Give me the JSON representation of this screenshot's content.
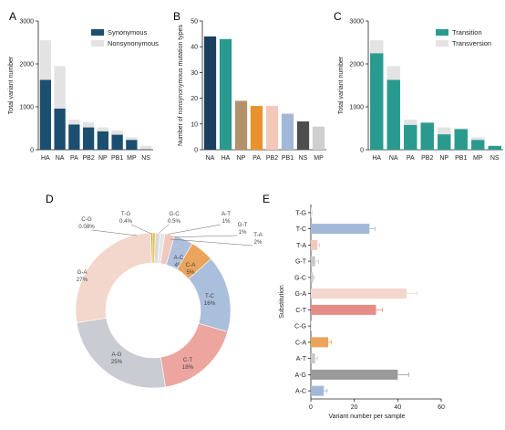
{
  "chart_data": [
    {
      "panel": "A",
      "type": "bar",
      "stacked": true,
      "ylabel": "Total variant number",
      "ylim": [
        0,
        3000
      ],
      "yticks": [
        0,
        1000,
        2000,
        3000
      ],
      "categories": [
        "HA",
        "NA",
        "PA",
        "PB2",
        "NP",
        "PB1",
        "MP",
        "NS"
      ],
      "series": [
        {
          "name": "Synonymous",
          "color": "#1c4e6f",
          "values": [
            1630,
            960,
            590,
            520,
            430,
            350,
            230,
            10
          ]
        },
        {
          "name": "Nonsynonymous",
          "color": "#e3e3e3",
          "values": [
            920,
            990,
            110,
            120,
            90,
            100,
            60,
            80
          ]
        }
      ],
      "legend": "top-right"
    },
    {
      "panel": "B",
      "type": "bar",
      "ylabel": "Number of nonsynonymous mutation types",
      "ylim": [
        0,
        50
      ],
      "yticks": [
        0,
        10,
        20,
        30,
        40,
        50
      ],
      "categories": [
        "NA",
        "HA",
        "NP",
        "PA",
        "PB2",
        "PB1",
        "NS",
        "MP"
      ],
      "values": [
        44,
        43,
        19,
        17,
        17,
        14,
        11,
        9
      ],
      "colors": [
        "#1b3f5f",
        "#2a9a8f",
        "#b3916c",
        "#e8922d",
        "#f3c8bb",
        "#a3b8d8",
        "#4d4d4d",
        "#cfcfcf"
      ]
    },
    {
      "panel": "C",
      "type": "bar",
      "stacked": true,
      "ylabel": "Total variant number",
      "ylim": [
        0,
        3000
      ],
      "yticks": [
        0,
        1000,
        2000,
        3000
      ],
      "categories": [
        "HA",
        "NA",
        "PA",
        "PB2",
        "NP",
        "PB1",
        "MP",
        "NS"
      ],
      "series": [
        {
          "name": "Transition",
          "color": "#2a9a8f",
          "values": [
            2250,
            1630,
            580,
            630,
            360,
            480,
            230,
            90
          ]
        },
        {
          "name": "Transversion",
          "color": "#e3e3e3",
          "values": [
            300,
            320,
            120,
            20,
            160,
            20,
            60,
            10
          ]
        }
      ],
      "legend": "top-right"
    },
    {
      "panel": "D",
      "type": "pie",
      "donut": true,
      "slices": [
        {
          "label": "A-C",
          "value": 4,
          "pct": "4%",
          "color": "#aec0dc"
        },
        {
          "label": "C-A",
          "value": 5,
          "pct": "5%",
          "color": "#eba45b"
        },
        {
          "label": "T-C",
          "value": 16,
          "pct": "16%",
          "color": "#a9bfdc"
        },
        {
          "label": "C-T",
          "value": 18,
          "pct": "18%",
          "color": "#eca59f"
        },
        {
          "label": "A-G",
          "value": 25,
          "pct": "25%",
          "color": "#c9ccd2"
        },
        {
          "label": "G-A",
          "value": 27,
          "pct": "27%",
          "color": "#f3d6cc"
        },
        {
          "label": "C-G",
          "value": 0.08,
          "pct": "0.08%",
          "color": "#f5efe0"
        },
        {
          "label": "T-G",
          "value": 0.4,
          "pct": "0.4%",
          "color": "#c4a43b"
        },
        {
          "label": "G-C",
          "value": 0.5,
          "pct": "0.5%",
          "color": "#f1c232"
        },
        {
          "label": "A-T",
          "value": 1,
          "pct": "1%",
          "color": "#d9d9d9"
        },
        {
          "label": "G-T",
          "value": 1,
          "pct": "1%",
          "color": "#e6e6e6"
        },
        {
          "label": "T-A",
          "value": 2,
          "pct": "2%",
          "color": "#f1c8bd"
        }
      ]
    },
    {
      "panel": "E",
      "type": "bar",
      "orientation": "horizontal",
      "xlabel": "Variant number per sample",
      "ylabel": "Substitution",
      "xlim": [
        0,
        60
      ],
      "xticks": [
        0,
        20,
        40,
        60
      ],
      "categories": [
        "T-G",
        "T-C",
        "T-A",
        "G-T",
        "G-C",
        "G-A",
        "C-T",
        "C-G",
        "C-A",
        "A-T",
        "A-G",
        "A-C"
      ],
      "values": [
        0.3,
        27,
        3,
        2,
        1,
        44,
        30,
        0.1,
        8,
        2,
        40,
        6
      ],
      "errors": [
        0.3,
        2.5,
        1,
        1.5,
        0.5,
        5,
        3,
        0.1,
        1.5,
        1,
        5,
        1.5
      ],
      "colors": [
        "#d9d9d9",
        "#a3b8d8",
        "#f3c8bb",
        "#c9c9c9",
        "#c9c9c9",
        "#f3d6cc",
        "#e68c86",
        "#e0e0e0",
        "#eba45b",
        "#c9c9c9",
        "#9a9a9a",
        "#a3b8d8"
      ]
    }
  ],
  "panel_labels": [
    "A",
    "B",
    "C",
    "D",
    "E"
  ]
}
